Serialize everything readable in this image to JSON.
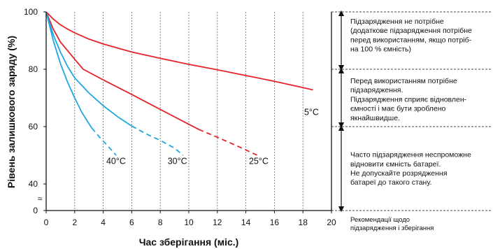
{
  "chart_data": {
    "type": "line",
    "xlabel": "Час зберігання (міс.)",
    "ylabel": "Рівень залишкового заряду (%)",
    "xlim": [
      0,
      20
    ],
    "xticks": [
      0,
      2,
      4,
      6,
      8,
      10,
      12,
      14,
      16,
      18,
      20
    ],
    "yticks": [
      0,
      40,
      60,
      80,
      100
    ],
    "axis_break": "≈",
    "grid": "vertical dashed",
    "series": [
      {
        "name": "5°C",
        "color": "#e3242b",
        "solid": [
          [
            0,
            100
          ],
          [
            0.5,
            97.5
          ],
          [
            1,
            95.5
          ],
          [
            1.5,
            94
          ],
          [
            2,
            92.7
          ],
          [
            3,
            90.5
          ],
          [
            4,
            88.8
          ],
          [
            6,
            86
          ],
          [
            8,
            83.8
          ],
          [
            10,
            81.7
          ],
          [
            12,
            79.8
          ],
          [
            14,
            77.8
          ],
          [
            16,
            75.8
          ],
          [
            18,
            73.6
          ],
          [
            18.7,
            72.8
          ]
        ],
        "dashed": []
      },
      {
        "name": "25°C",
        "color": "#e3242b",
        "solid": [
          [
            0,
            100
          ],
          [
            0.5,
            94
          ],
          [
            1,
            89.5
          ],
          [
            1.5,
            86.5
          ],
          [
            2,
            83.5
          ],
          [
            2.6,
            80
          ],
          [
            4,
            76.3
          ],
          [
            6,
            71.2
          ],
          [
            8,
            66
          ],
          [
            10,
            60.8
          ],
          [
            10.7,
            59
          ]
        ],
        "dashed": [
          [
            10.7,
            59
          ],
          [
            12,
            56.3
          ],
          [
            13.5,
            53
          ],
          [
            14.8,
            50
          ]
        ]
      },
      {
        "name": "30°C",
        "color": "#1fa7e0",
        "solid": [
          [
            0,
            100
          ],
          [
            0.5,
            92
          ],
          [
            1,
            86
          ],
          [
            1.5,
            81
          ],
          [
            2,
            77
          ],
          [
            3,
            71.7
          ],
          [
            4,
            67.3
          ],
          [
            5,
            63.5
          ],
          [
            6,
            60.2
          ]
        ],
        "dashed": [
          [
            6,
            60.2
          ],
          [
            7,
            57.5
          ],
          [
            8,
            55.2
          ],
          [
            9,
            52.5
          ],
          [
            9.6,
            50
          ]
        ]
      },
      {
        "name": "40°C",
        "color": "#1fa7e0",
        "solid": [
          [
            0,
            100
          ],
          [
            0.5,
            90
          ],
          [
            1,
            82
          ],
          [
            1.5,
            75.5
          ],
          [
            2,
            70
          ],
          [
            2.5,
            65
          ],
          [
            3,
            61
          ],
          [
            3.2,
            59.5
          ]
        ],
        "dashed": [
          [
            3.2,
            59.5
          ],
          [
            3.8,
            56
          ],
          [
            4.4,
            52.8
          ],
          [
            4.9,
            50
          ]
        ]
      }
    ],
    "curve_labels": [
      {
        "text": "5°C",
        "x": 18.6,
        "y": 64
      },
      {
        "text": "25°C",
        "x": 14.9,
        "y": 47
      },
      {
        "text": "30°C",
        "x": 9.2,
        "y": 47
      },
      {
        "text": "40°C",
        "x": 4.9,
        "y": 47
      }
    ]
  },
  "recommendations": {
    "zones": [
      {
        "range": [
          80,
          100
        ],
        "lines": [
          "Підзарядження не потрібне",
          "(додаткове підзарядження потрібне",
          "перед використанням, якщо потріб-",
          "на 100 % ємність)"
        ]
      },
      {
        "range": [
          60,
          80
        ],
        "lines": [
          "Перед використанням потрібне",
          "підзарядження.",
          "Підзарядження сприяє відновлен-",
          "ємності і має бути зроблено",
          "якнайшвидше."
        ]
      },
      {
        "range": [
          0,
          60
        ],
        "lines": [
          "Часто підзарядження неспроможне",
          "відновити ємність батареї.",
          "Не допускайте розрядження",
          "батареї до такого стану."
        ]
      }
    ],
    "footer_lines": [
      "Рекомендації щодо",
      "підзарядження і зберігання"
    ]
  }
}
